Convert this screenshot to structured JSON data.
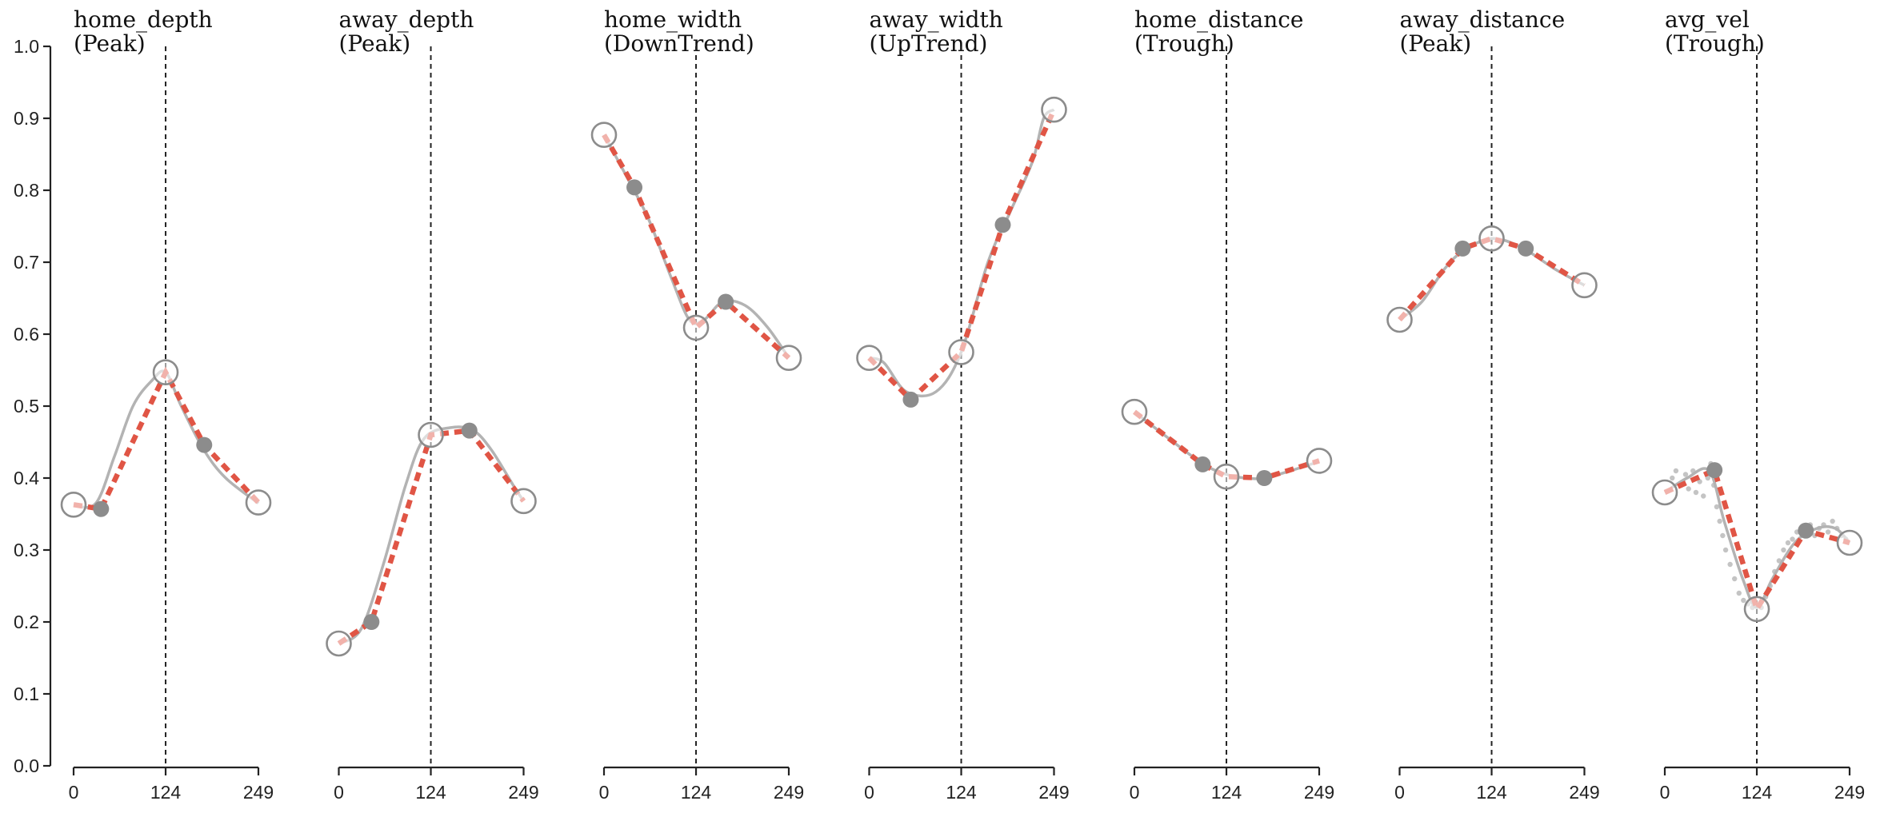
{
  "chart_data": {
    "type": "line",
    "y_axis": {
      "ylim": [
        0,
        1
      ],
      "ticks": [
        "0.0",
        "0.1",
        "0.2",
        "0.3",
        "0.4",
        "0.5",
        "0.6",
        "0.7",
        "0.8",
        "0.9",
        "1.0"
      ]
    },
    "x_axis": {
      "xlim": [
        0,
        249
      ],
      "ticks": [
        0,
        124,
        249
      ],
      "tick_labels": [
        "0",
        "124",
        "249"
      ],
      "divider_x": 124
    },
    "colors": {
      "fitted_line": "#e05545",
      "smoothed_series": "#b3b3b3",
      "markers": "#8c8c8c",
      "axes": "#222222"
    },
    "panels": [
      {
        "name": "home_depth",
        "pattern": "(Peak)",
        "smoothed": [
          [
            0,
            0.362
          ],
          [
            30,
            0.365
          ],
          [
            55,
            0.43
          ],
          [
            80,
            0.5
          ],
          [
            105,
            0.535
          ],
          [
            124,
            0.547
          ],
          [
            145,
            0.5
          ],
          [
            175,
            0.44
          ],
          [
            205,
            0.4
          ],
          [
            249,
            0.365
          ]
        ],
        "fit": [
          [
            0,
            0.363
          ],
          [
            37,
            0.357
          ],
          [
            124,
            0.547
          ],
          [
            176,
            0.446
          ],
          [
            249,
            0.366
          ]
        ]
      },
      {
        "name": "away_depth",
        "pattern": "(Peak)",
        "smoothed": [
          [
            0,
            0.17
          ],
          [
            30,
            0.19
          ],
          [
            60,
            0.28
          ],
          [
            90,
            0.39
          ],
          [
            115,
            0.455
          ],
          [
            150,
            0.47
          ],
          [
            180,
            0.467
          ],
          [
            205,
            0.44
          ],
          [
            235,
            0.39
          ],
          [
            249,
            0.368
          ]
        ],
        "fit": [
          [
            0,
            0.17
          ],
          [
            44,
            0.2
          ],
          [
            124,
            0.46
          ],
          [
            176,
            0.466
          ],
          [
            249,
            0.368
          ]
        ]
      },
      {
        "name": "home_width",
        "pattern": "(DownTrend)",
        "smoothed": [
          [
            0,
            0.877
          ],
          [
            30,
            0.82
          ],
          [
            60,
            0.76
          ],
          [
            90,
            0.68
          ],
          [
            115,
            0.62
          ],
          [
            135,
            0.62
          ],
          [
            160,
            0.645
          ],
          [
            190,
            0.64
          ],
          [
            220,
            0.61
          ],
          [
            249,
            0.567
          ]
        ],
        "fit": [
          [
            0,
            0.877
          ],
          [
            41,
            0.804
          ],
          [
            124,
            0.609
          ],
          [
            164,
            0.645
          ],
          [
            249,
            0.567
          ]
        ]
      },
      {
        "name": "away_width",
        "pattern": "(UpTrend)",
        "smoothed": [
          [
            0,
            0.567
          ],
          [
            20,
            0.56
          ],
          [
            50,
            0.52
          ],
          [
            90,
            0.52
          ],
          [
            124,
            0.575
          ],
          [
            160,
            0.7
          ],
          [
            190,
            0.77
          ],
          [
            220,
            0.84
          ],
          [
            235,
            0.9
          ],
          [
            249,
            0.912
          ]
        ],
        "fit": [
          [
            0,
            0.567
          ],
          [
            56,
            0.509
          ],
          [
            124,
            0.575
          ],
          [
            180,
            0.752
          ],
          [
            249,
            0.912
          ]
        ]
      },
      {
        "name": "home_distance",
        "pattern": "(Trough)",
        "smoothed": [
          [
            0,
            0.492
          ],
          [
            40,
            0.46
          ],
          [
            92,
            0.42
          ],
          [
            124,
            0.405
          ],
          [
            150,
            0.4
          ],
          [
            175,
            0.4
          ],
          [
            210,
            0.41
          ],
          [
            249,
            0.423
          ]
        ],
        "fit": [
          [
            0,
            0.492
          ],
          [
            92,
            0.419
          ],
          [
            124,
            0.402
          ],
          [
            175,
            0.4
          ],
          [
            249,
            0.424
          ]
        ]
      },
      {
        "name": "away_distance",
        "pattern": "(Peak)",
        "smoothed": [
          [
            0,
            0.62
          ],
          [
            30,
            0.645
          ],
          [
            60,
            0.69
          ],
          [
            85,
            0.715
          ],
          [
            124,
            0.733
          ],
          [
            165,
            0.72
          ],
          [
            210,
            0.69
          ],
          [
            249,
            0.668
          ]
        ],
        "fit": [
          [
            0,
            0.62
          ],
          [
            85,
            0.719
          ],
          [
            124,
            0.733
          ],
          [
            170,
            0.719
          ],
          [
            249,
            0.668
          ]
        ]
      },
      {
        "name": "avg_vel",
        "pattern": "(Trough)",
        "smoothed": [
          [
            0,
            0.38
          ],
          [
            30,
            0.4
          ],
          [
            60,
            0.41
          ],
          [
            80,
            0.34
          ],
          [
            105,
            0.26
          ],
          [
            124,
            0.22
          ],
          [
            145,
            0.26
          ],
          [
            175,
            0.31
          ],
          [
            205,
            0.33
          ],
          [
            230,
            0.33
          ],
          [
            249,
            0.31
          ]
        ],
        "scatter": [
          [
            10,
            0.4
          ],
          [
            15,
            0.41
          ],
          [
            22,
            0.39
          ],
          [
            28,
            0.405
          ],
          [
            32,
            0.385
          ],
          [
            38,
            0.41
          ],
          [
            42,
            0.38
          ],
          [
            47,
            0.395
          ],
          [
            52,
            0.375
          ],
          [
            58,
            0.4
          ],
          [
            62,
            0.42
          ],
          [
            66,
            0.39
          ],
          [
            70,
            0.36
          ],
          [
            74,
            0.34
          ],
          [
            78,
            0.32
          ],
          [
            82,
            0.3
          ],
          [
            88,
            0.28
          ],
          [
            94,
            0.26
          ],
          [
            100,
            0.24
          ],
          [
            106,
            0.23
          ],
          [
            112,
            0.225
          ],
          [
            118,
            0.22
          ],
          [
            130,
            0.22
          ],
          [
            136,
            0.235
          ],
          [
            142,
            0.25
          ],
          [
            148,
            0.27
          ],
          [
            154,
            0.285
          ],
          [
            160,
            0.3
          ],
          [
            166,
            0.31
          ],
          [
            172,
            0.315
          ],
          [
            178,
            0.325
          ],
          [
            184,
            0.33
          ],
          [
            190,
            0.325
          ],
          [
            196,
            0.335
          ],
          [
            202,
            0.32
          ],
          [
            208,
            0.33
          ],
          [
            214,
            0.335
          ],
          [
            220,
            0.325
          ],
          [
            226,
            0.34
          ],
          [
            232,
            0.33
          ],
          [
            238,
            0.32
          ],
          [
            244,
            0.315
          ]
        ],
        "fit": [
          [
            0,
            0.38
          ],
          [
            67,
            0.411
          ],
          [
            124,
            0.218
          ],
          [
            190,
            0.327
          ],
          [
            249,
            0.31
          ]
        ]
      }
    ]
  }
}
